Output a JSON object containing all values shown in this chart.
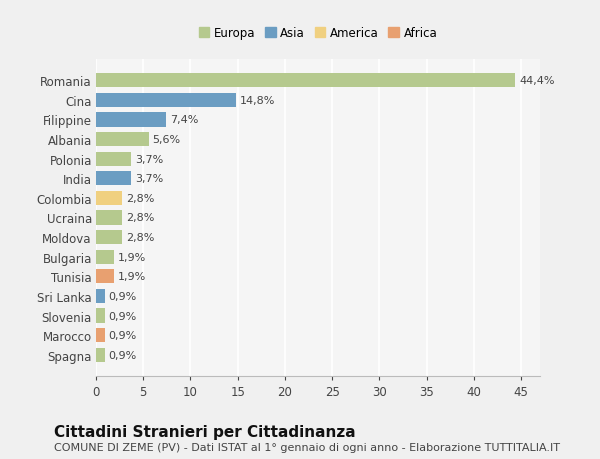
{
  "categories": [
    "Romania",
    "Cina",
    "Filippine",
    "Albania",
    "Polonia",
    "India",
    "Colombia",
    "Ucraina",
    "Moldova",
    "Bulgaria",
    "Tunisia",
    "Sri Lanka",
    "Slovenia",
    "Marocco",
    "Spagna"
  ],
  "values": [
    44.4,
    14.8,
    7.4,
    5.6,
    3.7,
    3.7,
    2.8,
    2.8,
    2.8,
    1.9,
    1.9,
    0.9,
    0.9,
    0.9,
    0.9
  ],
  "labels": [
    "44,4%",
    "14,8%",
    "7,4%",
    "5,6%",
    "3,7%",
    "3,7%",
    "2,8%",
    "2,8%",
    "2,8%",
    "1,9%",
    "1,9%",
    "0,9%",
    "0,9%",
    "0,9%",
    "0,9%"
  ],
  "colors": [
    "#b5c98e",
    "#6b9dc2",
    "#6b9dc2",
    "#b5c98e",
    "#b5c98e",
    "#6b9dc2",
    "#f0d080",
    "#b5c98e",
    "#b5c98e",
    "#b5c98e",
    "#e8a070",
    "#6b9dc2",
    "#b5c98e",
    "#e8a070",
    "#b5c98e"
  ],
  "legend_labels": [
    "Europa",
    "Asia",
    "America",
    "Africa"
  ],
  "legend_colors": [
    "#b5c98e",
    "#6b9dc2",
    "#f0d080",
    "#e8a070"
  ],
  "xlim": [
    0,
    47
  ],
  "xticks": [
    0,
    5,
    10,
    15,
    20,
    25,
    30,
    35,
    40,
    45
  ],
  "title": "Cittadini Stranieri per Cittadinanza",
  "subtitle": "COMUNE DI ZEME (PV) - Dati ISTAT al 1° gennaio di ogni anno - Elaborazione TUTTITALIA.IT",
  "bg_color": "#f0f0f0",
  "plot_bg_color": "#f5f5f5",
  "grid_color": "#ffffff",
  "bar_height": 0.72,
  "title_fontsize": 11,
  "subtitle_fontsize": 8,
  "label_fontsize": 8,
  "tick_fontsize": 8.5
}
